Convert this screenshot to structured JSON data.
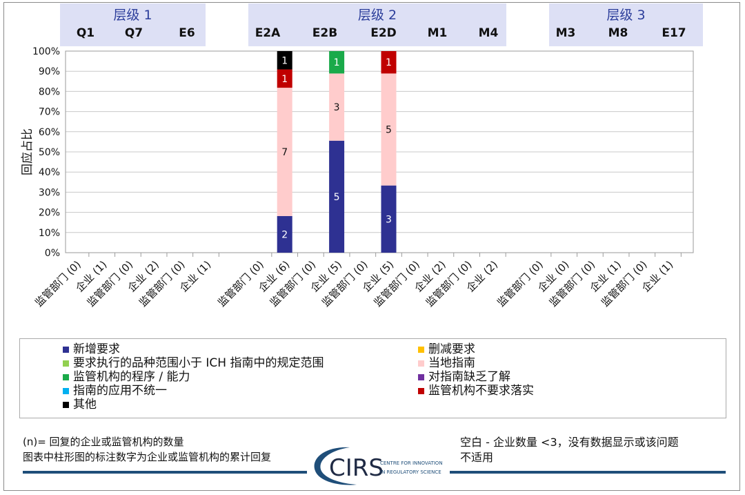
{
  "tiers": [
    {
      "title": "层级 1",
      "codes": [
        "Q1",
        "Q7",
        "E6"
      ]
    },
    {
      "title": "层级 2",
      "codes": [
        "E2A",
        "E2B",
        "E2D",
        "M1",
        "M4"
      ]
    },
    {
      "title": "层级 3",
      "codes": [
        "M3",
        "M8",
        "E17"
      ]
    }
  ],
  "chart_data": {
    "type": "bar",
    "stacked": true,
    "normalized": true,
    "title": "",
    "ylabel": "回应占比",
    "ylim": [
      0,
      100
    ],
    "yticks": [
      "0%",
      "10%",
      "20%",
      "30%",
      "40%",
      "50%",
      "60%",
      "70%",
      "80%",
      "90%",
      "100%"
    ],
    "grid": true,
    "categories": [
      "监管部门 (0)",
      "企业 (1)",
      "监管部门 (0)",
      "企业 (2)",
      "监管部门 (0)",
      "企业 (1)",
      "监管部门 (0)",
      "企业 (6)",
      "监管部门 (0)",
      "企业 (5)",
      "监管部门 (0)",
      "企业 (5)",
      "监管部门 (0)",
      "企业 (2)",
      "监管部门 (0)",
      "企业 (2)",
      "监管部门 (0)",
      "企业 (0)",
      "监管部门 (0)",
      "企业 (1)",
      "监管部门 (0)",
      "企业 (1)"
    ],
    "series": [
      {
        "name": "新增要求",
        "color": "#2e3192",
        "values": [
          0,
          0,
          0,
          0,
          0,
          0,
          0,
          2,
          0,
          5,
          0,
          3,
          0,
          0,
          0,
          0,
          0,
          0,
          0,
          0,
          0,
          0
        ]
      },
      {
        "name": "当地指南",
        "color": "#ffcccc",
        "values": [
          0,
          0,
          0,
          0,
          0,
          0,
          0,
          7,
          0,
          3,
          0,
          5,
          0,
          0,
          0,
          0,
          0,
          0,
          0,
          0,
          0,
          0
        ]
      },
      {
        "name": "监管机构的程序 / 能力",
        "color": "#1aaa4a",
        "values": [
          0,
          0,
          0,
          0,
          0,
          0,
          0,
          0,
          0,
          1,
          0,
          0,
          0,
          0,
          0,
          0,
          0,
          0,
          0,
          0,
          0,
          0
        ]
      },
      {
        "name": "监管机构不要求落实",
        "color": "#c00000",
        "values": [
          0,
          0,
          0,
          0,
          0,
          0,
          0,
          1,
          0,
          0,
          0,
          1,
          0,
          0,
          0,
          0,
          0,
          0,
          0,
          0,
          0,
          0
        ]
      },
      {
        "name": "其他",
        "color": "#000000",
        "values": [
          0,
          0,
          0,
          0,
          0,
          0,
          0,
          1,
          0,
          0,
          0,
          0,
          0,
          0,
          0,
          0,
          0,
          0,
          0,
          0,
          0,
          0
        ]
      }
    ]
  },
  "legend": {
    "items": [
      {
        "label": "新增要求",
        "color": "#2e3192"
      },
      {
        "label": "要求执行的品种范围小于 ICH 指南中的规定范围",
        "color": "#92d050"
      },
      {
        "label": "监管机构的程序 / 能力",
        "color": "#1aaa4a"
      },
      {
        "label": "指南的应用不统一",
        "color": "#00b0f0"
      },
      {
        "label": "其他",
        "color": "#000000"
      },
      {
        "label": "删减要求",
        "color": "#ffc000"
      },
      {
        "label": "当地指南",
        "color": "#ffcccc"
      },
      {
        "label": "对指南缺乏了解",
        "color": "#7030a0"
      },
      {
        "label": "监管机构不要求落实",
        "color": "#c00000"
      }
    ]
  },
  "notes": {
    "left_line1": "(n)= 回复的企业或监管机构的数量",
    "left_line2": "图表中柱形图的标注数字为企业或监管机构的累计回复",
    "right_line1": "空白 - 企业数量 <3，没有数据显示或该问题",
    "right_line2": "不适用"
  },
  "logo": {
    "text": "CIRS",
    "line1": "CENTRE FOR INNOVATION",
    "line2": "IN REGULATORY SCIENCE"
  }
}
